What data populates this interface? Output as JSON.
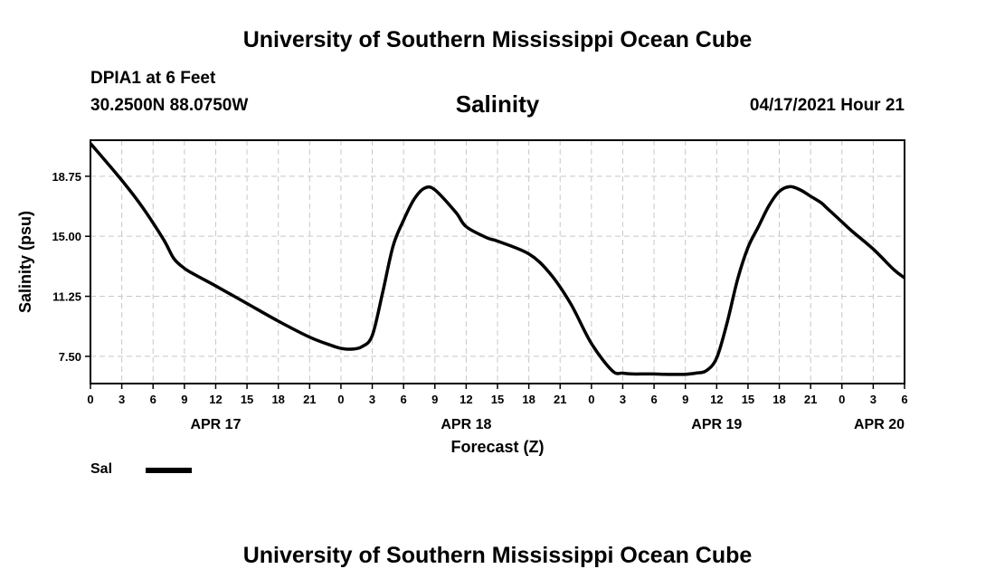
{
  "header": {
    "title": "University of Southern Mississippi Ocean Cube",
    "station": "DPIA1 at 6 Feet",
    "coords": "30.2500N  88.0750W",
    "parameter": "Salinity",
    "timestamp": "04/17/2021 Hour 21"
  },
  "footer": {
    "title": "University of Southern Mississippi Ocean Cube"
  },
  "legend": {
    "label": "Sal",
    "color": "#000000"
  },
  "chart_data": {
    "type": "line",
    "title": "Salinity",
    "xlabel": "Forecast (Z)",
    "ylabel": "Salinity (psu)",
    "xlim": [
      0,
      78
    ],
    "ylim": [
      5.8,
      21
    ],
    "grid": true,
    "legend_position": "bottom-left",
    "x_ticks": [
      "0",
      "3",
      "6",
      "9",
      "12",
      "15",
      "18",
      "21",
      "0",
      "3",
      "6",
      "9",
      "12",
      "15",
      "18",
      "21",
      "0",
      "3",
      "6",
      "9",
      "12",
      "15",
      "18",
      "21",
      "0",
      "3",
      "6"
    ],
    "y_ticks": [
      "7.50",
      "11.25",
      "15.00",
      "18.75"
    ],
    "y_tick_values": [
      7.5,
      11.25,
      15.0,
      18.75
    ],
    "date_labels": [
      {
        "label": "APR 17",
        "hour": 12
      },
      {
        "label": "APR 18",
        "hour": 36
      },
      {
        "label": "APR 19",
        "hour": 60
      },
      {
        "label": "APR 20",
        "hour": 78
      }
    ],
    "series": [
      {
        "name": "Sal",
        "x": [
          0,
          3,
          5,
          7,
          8,
          9,
          10,
          12,
          15,
          18,
          21,
          23,
          24,
          25,
          26,
          27,
          28,
          29,
          30,
          31,
          32,
          33,
          35,
          36,
          38,
          39,
          42,
          44,
          46,
          48,
          50,
          51,
          52,
          53,
          54,
          55,
          56,
          57,
          58,
          59,
          60,
          61,
          62,
          63,
          64,
          65,
          66,
          67,
          68,
          69,
          70,
          70.5,
          71,
          72,
          73,
          75,
          77,
          78
        ],
        "y": [
          20.8,
          18.5,
          16.8,
          14.8,
          13.6,
          13.0,
          12.6,
          11.9,
          10.8,
          9.7,
          8.7,
          8.2,
          8.0,
          7.95,
          8.1,
          8.8,
          11.5,
          14.4,
          16.0,
          17.3,
          18.0,
          17.9,
          16.5,
          15.6,
          14.9,
          14.7,
          13.9,
          12.7,
          10.8,
          8.3,
          6.6,
          6.45,
          6.4,
          6.4,
          6.4,
          6.38,
          6.37,
          6.38,
          6.45,
          6.6,
          7.4,
          9.6,
          12.3,
          14.3,
          15.6,
          16.9,
          17.8,
          18.1,
          17.9,
          17.5,
          17.1,
          16.8,
          16.5,
          15.9,
          15.3,
          14.2,
          12.9,
          12.4
        ]
      }
    ]
  }
}
